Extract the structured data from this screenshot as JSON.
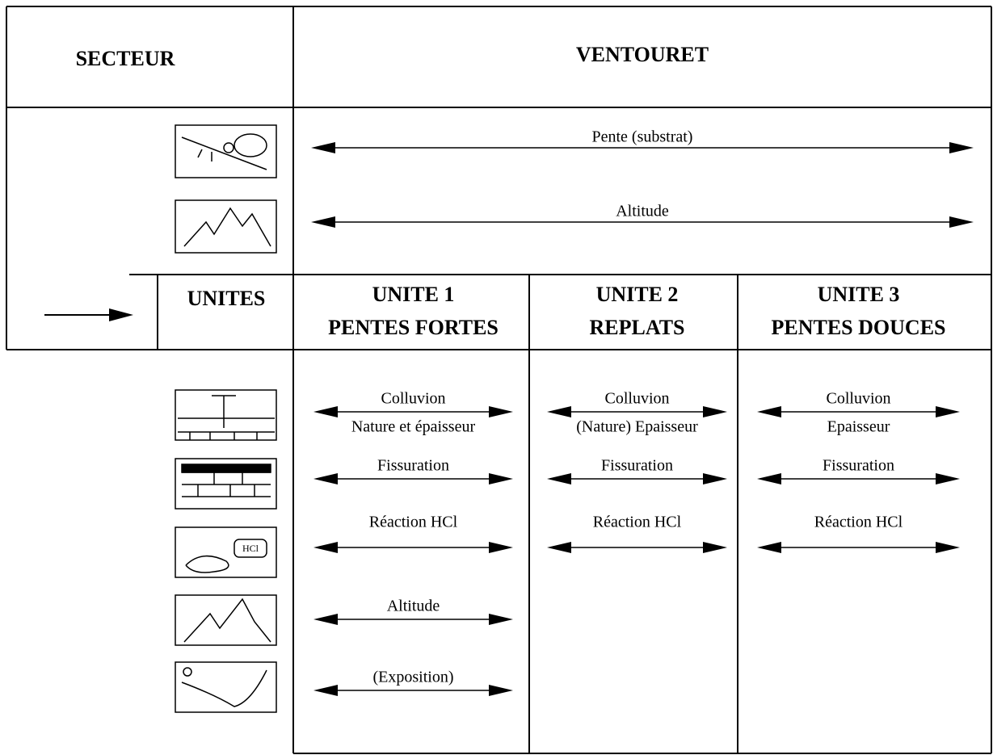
{
  "header": {
    "left": "SECTEUR",
    "right": "VENTOURET"
  },
  "sector_criteria": [
    "Pente (substrat)",
    "Altitude"
  ],
  "units_label": "UNITES",
  "units": [
    {
      "title": "UNITE 1",
      "subtitle": "PENTES FORTES",
      "criteria": [
        {
          "label": "Colluvion",
          "detail": "Nature et épaisseur"
        },
        {
          "label": "Fissuration"
        },
        {
          "label": "Réaction HCl"
        },
        {
          "label": "Altitude"
        },
        {
          "label": "(Exposition)"
        }
      ]
    },
    {
      "title": "UNITE 2",
      "subtitle": "REPLATS",
      "criteria": [
        {
          "label": "Colluvion",
          "detail": "(Nature) Epaisseur"
        },
        {
          "label": "Fissuration"
        },
        {
          "label": "Réaction HCl"
        }
      ]
    },
    {
      "title": "UNITE 3",
      "subtitle": "PENTES DOUCES",
      "criteria": [
        {
          "label": "Colluvion",
          "detail": "Epaisseur"
        },
        {
          "label": "Fissuration"
        },
        {
          "label": "Réaction HCl"
        }
      ]
    }
  ]
}
